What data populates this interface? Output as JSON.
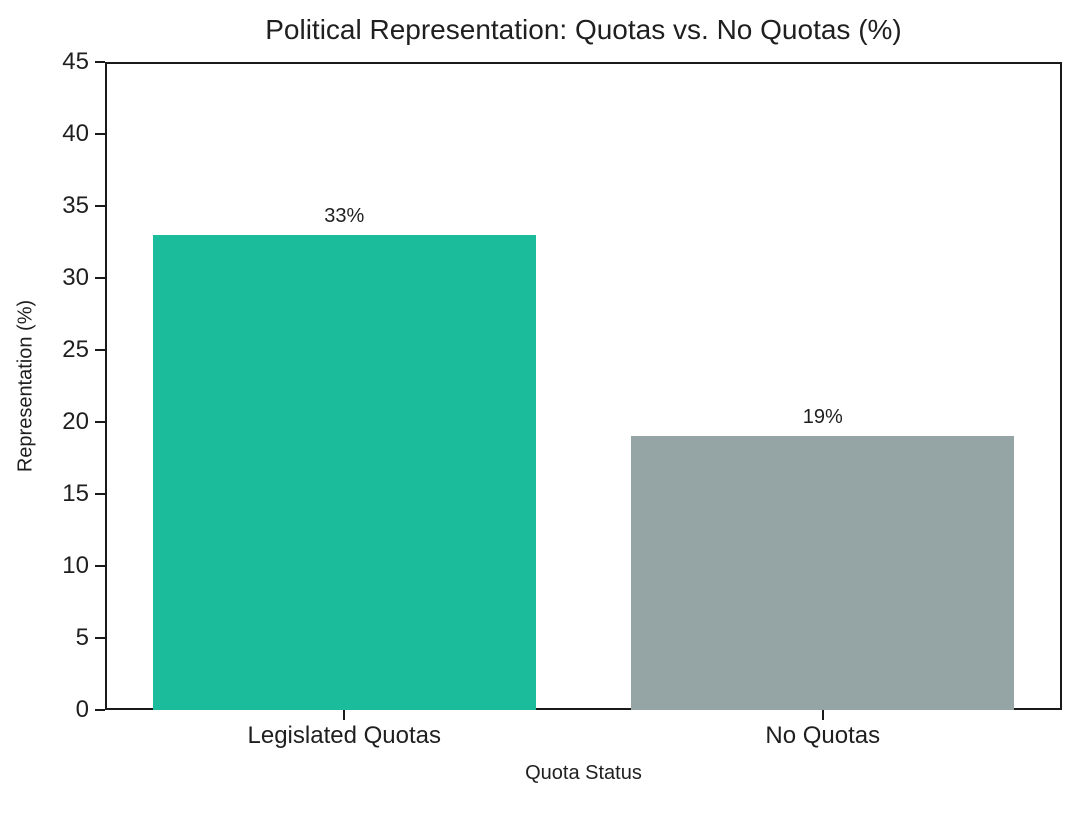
{
  "chart_data": {
    "type": "bar",
    "title": "Political Representation: Quotas vs. No Quotas (%)",
    "xlabel": "Quota Status",
    "ylabel": "Representation (%)",
    "categories": [
      "Legislated Quotas",
      "No Quotas"
    ],
    "values": [
      33,
      19
    ],
    "bar_labels": [
      "33%",
      "19%"
    ],
    "bar_colors": [
      "#1abc9c",
      "#95a5a6"
    ],
    "ylim": [
      0,
      45
    ],
    "yticks": [
      0,
      5,
      10,
      15,
      20,
      25,
      30,
      35,
      40,
      45
    ],
    "grid": "off",
    "legend": "none",
    "frame": "boxed",
    "axis_color": "#1a1a1a",
    "text_color": "#1f1f1f",
    "background_color": "#ffffff"
  }
}
